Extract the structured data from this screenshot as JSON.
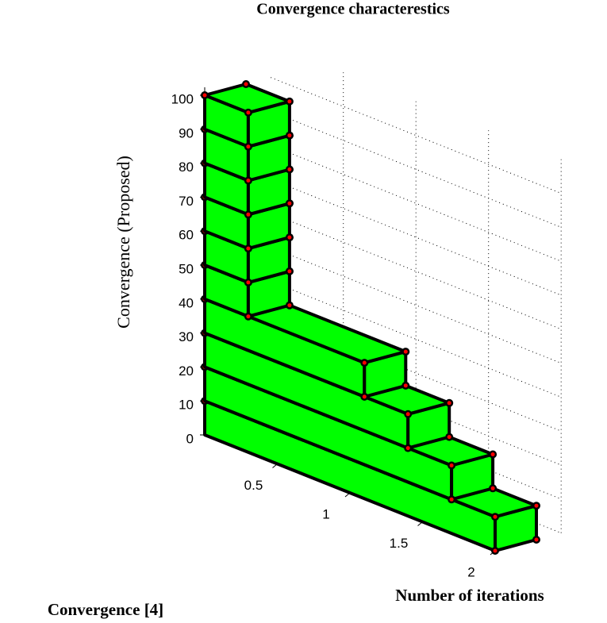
{
  "chart_data": {
    "type": "bar3",
    "title": "Convergence characterestics",
    "zlabel": "Convergence (Proposed)",
    "xlabel": "Number of iterations",
    "ylabel": "Convergence [4]",
    "values": [
      2,
      1.7,
      1.4,
      1.1,
      0.3,
      0.3,
      0.3,
      0.3,
      0.3,
      0.3
    ],
    "color": "#00ff00",
    "zlim": [
      0,
      100
    ],
    "zticks": [
      0,
      10,
      20,
      30,
      40,
      50,
      60,
      70,
      80,
      90,
      100
    ],
    "xlim": [
      0,
      2
    ],
    "xticks": [
      0.5,
      1,
      1.5,
      2
    ],
    "grid": true
  }
}
